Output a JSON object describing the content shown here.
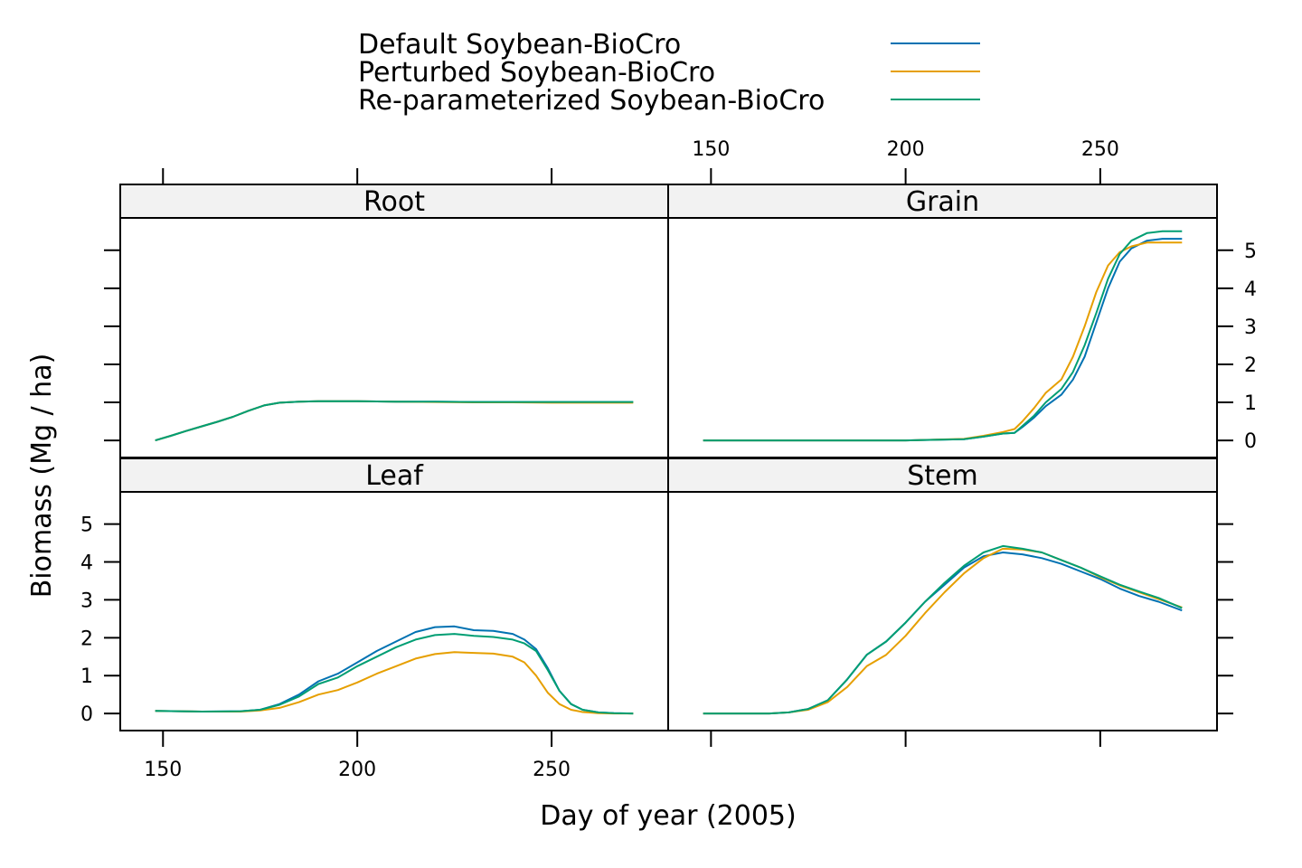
{
  "chart_data": {
    "type": "line",
    "layout": "2x2 trellis",
    "xlabel": "Day of year (2005)",
    "ylabel": "Biomass (Mg / ha)",
    "xlim": [
      139,
      280
    ],
    "ylim": [
      -0.45,
      5.85
    ],
    "x_ticks": [
      150,
      200,
      250
    ],
    "y_ticks": [
      0,
      1,
      2,
      3,
      4,
      5
    ],
    "legend": {
      "placement": "top-center",
      "entries": [
        {
          "name": "Default Soybean-BioCro",
          "color": "#0072B2"
        },
        {
          "name": "Perturbed Soybean-BioCro",
          "color": "#E69F00"
        },
        {
          "name": "Re-parameterized Soybean-BioCro",
          "color": "#009E73"
        }
      ]
    },
    "panels": [
      {
        "name": "Root",
        "series": [
          {
            "name": "Default Soybean-BioCro",
            "x": [
              148,
              152,
              156,
              160,
              164,
              168,
              172,
              176,
              180,
              185,
              190,
              200,
              210,
              220,
              230,
              240,
              250,
              260,
              271
            ],
            "y": [
              0.0,
              0.12,
              0.25,
              0.37,
              0.49,
              0.62,
              0.78,
              0.92,
              0.99,
              1.02,
              1.03,
              1.03,
              1.02,
              1.02,
              1.01,
              1.01,
              1.01,
              1.01,
              1.01
            ]
          },
          {
            "name": "Perturbed Soybean-BioCro",
            "x": [
              148,
              152,
              156,
              160,
              164,
              168,
              172,
              176,
              180,
              185,
              190,
              200,
              210,
              220,
              230,
              240,
              250,
              260,
              271
            ],
            "y": [
              0.0,
              0.12,
              0.25,
              0.37,
              0.49,
              0.62,
              0.78,
              0.92,
              0.99,
              1.02,
              1.03,
              1.03,
              1.02,
              1.01,
              1.0,
              1.0,
              0.99,
              0.99,
              0.99
            ]
          },
          {
            "name": "Re-parameterized Soybean-BioCro",
            "x": [
              148,
              152,
              156,
              160,
              164,
              168,
              172,
              176,
              180,
              185,
              190,
              200,
              210,
              220,
              230,
              240,
              250,
              260,
              271
            ],
            "y": [
              0.0,
              0.12,
              0.25,
              0.37,
              0.49,
              0.62,
              0.78,
              0.92,
              0.99,
              1.02,
              1.03,
              1.03,
              1.02,
              1.02,
              1.01,
              1.01,
              1.01,
              1.01,
              1.01
            ]
          }
        ]
      },
      {
        "name": "Grain",
        "series": [
          {
            "name": "Default Soybean-BioCro",
            "x": [
              148,
              200,
              215,
              220,
              225,
              228,
              230,
              233,
              236,
              240,
              243,
              246,
              249,
              252,
              255,
              258,
              262,
              266,
              271
            ],
            "y": [
              0.0,
              0.0,
              0.03,
              0.1,
              0.18,
              0.2,
              0.35,
              0.6,
              0.9,
              1.2,
              1.6,
              2.2,
              3.1,
              4.0,
              4.7,
              5.05,
              5.25,
              5.3,
              5.3
            ]
          },
          {
            "name": "Perturbed Soybean-BioCro",
            "x": [
              148,
              200,
              215,
              220,
              225,
              228,
              230,
              233,
              236,
              240,
              243,
              246,
              249,
              252,
              255,
              258,
              262,
              266,
              271
            ],
            "y": [
              0.0,
              0.0,
              0.04,
              0.12,
              0.22,
              0.3,
              0.5,
              0.85,
              1.25,
              1.6,
              2.2,
              3.0,
              3.9,
              4.6,
              4.95,
              5.1,
              5.2,
              5.2,
              5.2
            ]
          },
          {
            "name": "Re-parameterized Soybean-BioCro",
            "x": [
              148,
              200,
              215,
              220,
              225,
              228,
              230,
              233,
              236,
              240,
              243,
              246,
              249,
              252,
              255,
              258,
              262,
              266,
              271
            ],
            "y": [
              0.0,
              0.0,
              0.03,
              0.1,
              0.18,
              0.2,
              0.38,
              0.65,
              1.0,
              1.35,
              1.8,
              2.5,
              3.35,
              4.25,
              4.9,
              5.25,
              5.45,
              5.5,
              5.5
            ]
          }
        ]
      },
      {
        "name": "Leaf",
        "series": [
          {
            "name": "Default Soybean-BioCro",
            "x": [
              148,
              160,
              170,
              175,
              180,
              185,
              190,
              195,
              200,
              205,
              210,
              215,
              220,
              225,
              230,
              235,
              240,
              243,
              246,
              249,
              252,
              255,
              258,
              262,
              266,
              271
            ],
            "y": [
              0.07,
              0.05,
              0.06,
              0.1,
              0.25,
              0.5,
              0.85,
              1.05,
              1.35,
              1.65,
              1.9,
              2.15,
              2.28,
              2.3,
              2.2,
              2.18,
              2.1,
              1.95,
              1.7,
              1.2,
              0.6,
              0.25,
              0.1,
              0.03,
              0.01,
              0.0
            ]
          },
          {
            "name": "Perturbed Soybean-BioCro",
            "x": [
              148,
              160,
              170,
              175,
              180,
              185,
              190,
              195,
              200,
              205,
              210,
              215,
              220,
              225,
              230,
              235,
              240,
              243,
              246,
              249,
              252,
              255,
              258,
              262,
              266,
              271
            ],
            "y": [
              0.07,
              0.05,
              0.05,
              0.08,
              0.15,
              0.3,
              0.5,
              0.62,
              0.82,
              1.05,
              1.25,
              1.45,
              1.57,
              1.62,
              1.6,
              1.58,
              1.5,
              1.35,
              1.0,
              0.55,
              0.25,
              0.1,
              0.04,
              0.01,
              0.0,
              0.0
            ]
          },
          {
            "name": "Re-parameterized Soybean-BioCro",
            "x": [
              148,
              160,
              170,
              175,
              180,
              185,
              190,
              195,
              200,
              205,
              210,
              215,
              220,
              225,
              230,
              235,
              240,
              243,
              246,
              249,
              252,
              255,
              258,
              262,
              266,
              271
            ],
            "y": [
              0.07,
              0.05,
              0.06,
              0.1,
              0.23,
              0.45,
              0.78,
              0.95,
              1.25,
              1.5,
              1.75,
              1.95,
              2.07,
              2.1,
              2.05,
              2.02,
              1.95,
              1.85,
              1.65,
              1.15,
              0.6,
              0.25,
              0.1,
              0.03,
              0.01,
              0.0
            ]
          }
        ]
      },
      {
        "name": "Stem",
        "series": [
          {
            "name": "Default Soybean-BioCro",
            "x": [
              148,
              165,
              170,
              175,
              180,
              185,
              190,
              195,
              200,
              205,
              210,
              215,
              220,
              225,
              230,
              235,
              240,
              245,
              250,
              255,
              260,
              265,
              271
            ],
            "y": [
              0.0,
              0.0,
              0.03,
              0.12,
              0.35,
              0.9,
              1.55,
              1.9,
              2.4,
              2.95,
              3.4,
              3.85,
              4.15,
              4.25,
              4.2,
              4.1,
              3.95,
              3.75,
              3.55,
              3.3,
              3.1,
              2.95,
              2.72
            ]
          },
          {
            "name": "Perturbed Soybean-BioCro",
            "x": [
              148,
              165,
              170,
              175,
              180,
              185,
              190,
              195,
              200,
              205,
              210,
              215,
              220,
              225,
              230,
              235,
              240,
              245,
              250,
              255,
              260,
              265,
              271
            ],
            "y": [
              0.0,
              0.0,
              0.03,
              0.1,
              0.3,
              0.7,
              1.25,
              1.55,
              2.05,
              2.65,
              3.2,
              3.7,
              4.1,
              4.35,
              4.33,
              4.25,
              4.05,
              3.85,
              3.6,
              3.38,
              3.2,
              3.02,
              2.8
            ]
          },
          {
            "name": "Re-parameterized Soybean-BioCro",
            "x": [
              148,
              165,
              170,
              175,
              180,
              185,
              190,
              195,
              200,
              205,
              210,
              215,
              220,
              225,
              230,
              235,
              240,
              245,
              250,
              255,
              260,
              265,
              271
            ],
            "y": [
              0.0,
              0.0,
              0.03,
              0.12,
              0.35,
              0.9,
              1.55,
              1.9,
              2.4,
              2.95,
              3.45,
              3.9,
              4.25,
              4.42,
              4.35,
              4.25,
              4.05,
              3.85,
              3.62,
              3.4,
              3.22,
              3.05,
              2.78
            ]
          }
        ]
      }
    ]
  }
}
